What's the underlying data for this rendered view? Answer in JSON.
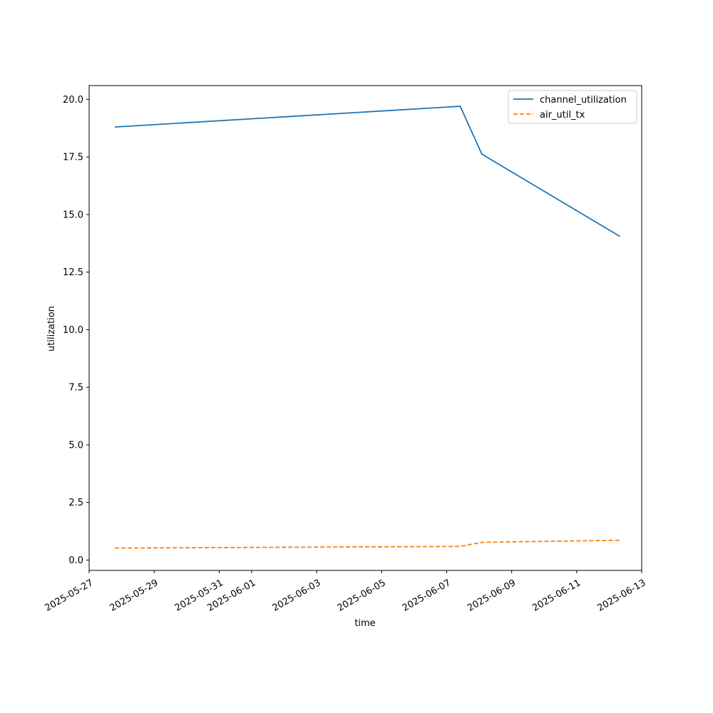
{
  "chart_data": {
    "type": "line",
    "xlabel": "time",
    "ylabel": "utilization",
    "x_ticks": [
      "2025-05-27",
      "2025-05-29",
      "2025-05-31",
      "2025-06-01",
      "2025-06-03",
      "2025-06-05",
      "2025-06-07",
      "2025-06-09",
      "2025-06-11",
      "2025-06-13"
    ],
    "y_ticks": [
      "0.0",
      "2.5",
      "5.0",
      "7.5",
      "10.0",
      "12.5",
      "15.0",
      "17.5",
      "20.0"
    ],
    "xlim": [
      "2025-05-27T00:00",
      "2025-06-13T00:00"
    ],
    "ylim": [
      -0.45,
      20.6
    ],
    "grid": false,
    "legend_position": "upper-right",
    "series": [
      {
        "name": "channel_utilization",
        "color": "#1f77b4",
        "dash": "solid",
        "points": [
          {
            "x": "2025-05-27T19:00",
            "y": 18.8
          },
          {
            "x": "2025-06-07T10:00",
            "y": 19.7
          },
          {
            "x": "2025-06-08T02:00",
            "y": 17.62
          },
          {
            "x": "2025-06-12T08:00",
            "y": 14.05
          }
        ]
      },
      {
        "name": "air_util_tx",
        "color": "#ff7f0e",
        "dash": "dashed",
        "points": [
          {
            "x": "2025-05-27T19:00",
            "y": 0.52
          },
          {
            "x": "2025-06-07T10:00",
            "y": 0.59
          },
          {
            "x": "2025-06-08T02:00",
            "y": 0.77
          },
          {
            "x": "2025-06-12T08:00",
            "y": 0.86
          }
        ]
      }
    ]
  }
}
